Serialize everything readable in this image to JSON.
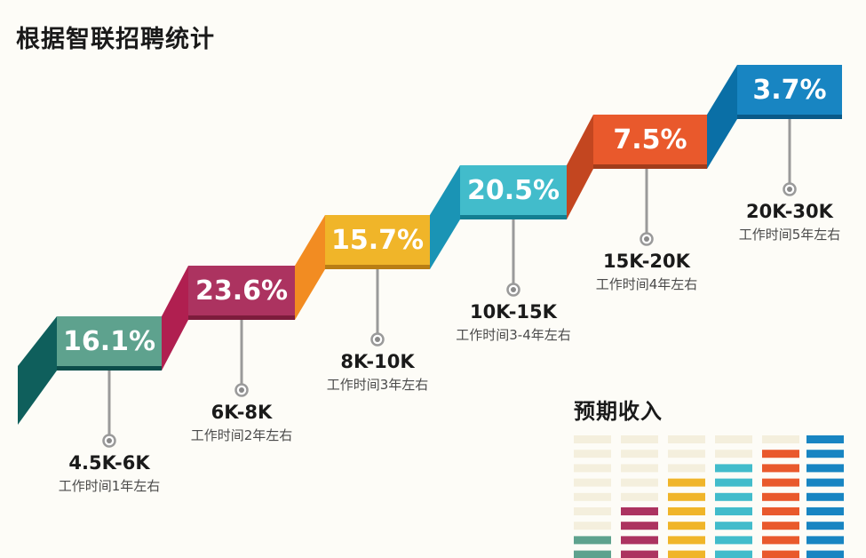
{
  "header": {
    "title": "根据智联招聘统计"
  },
  "legend": {
    "title": "预期收入"
  },
  "chart_data": {
    "type": "bar",
    "title": "根据智联招聘统计",
    "categories": [
      "4.5K-6K",
      "6K-8K",
      "8K-10K",
      "10K-15K",
      "15K-20K",
      "20K-30K"
    ],
    "subtitles": [
      "工作时间1年左右",
      "工作时间2年左右",
      "工作时间3年左右",
      "工作时间3-4年左右",
      "工作时间4年左右",
      "工作时间5年左右"
    ],
    "series": [
      {
        "values": [
          16.1,
          23.6,
          15.7,
          20.5,
          7.5,
          3.7
        ]
      }
    ],
    "value_labels": [
      "16.1%",
      "23.6%",
      "15.7%",
      "20.5%",
      "7.5%",
      "3.7%"
    ],
    "colors": [
      "#5ea28e",
      "#ac3360",
      "#f0b529",
      "#42bccb",
      "#e9592c",
      "#1885c2"
    ],
    "side_colors": [
      "#0f5f5c",
      "#b01f50",
      "#f28c22",
      "#1a94b5",
      "#c34620",
      "#0a6fa6"
    ],
    "bottom_colors": [
      "#0c4d4a",
      "#7d1c3c",
      "#b97e14",
      "#137e91",
      "#a13c1b",
      "#0a5a88"
    ],
    "legend_levels": [
      3,
      5,
      7,
      8,
      9,
      10
    ],
    "legend_empty_color": "#f4efdd"
  }
}
